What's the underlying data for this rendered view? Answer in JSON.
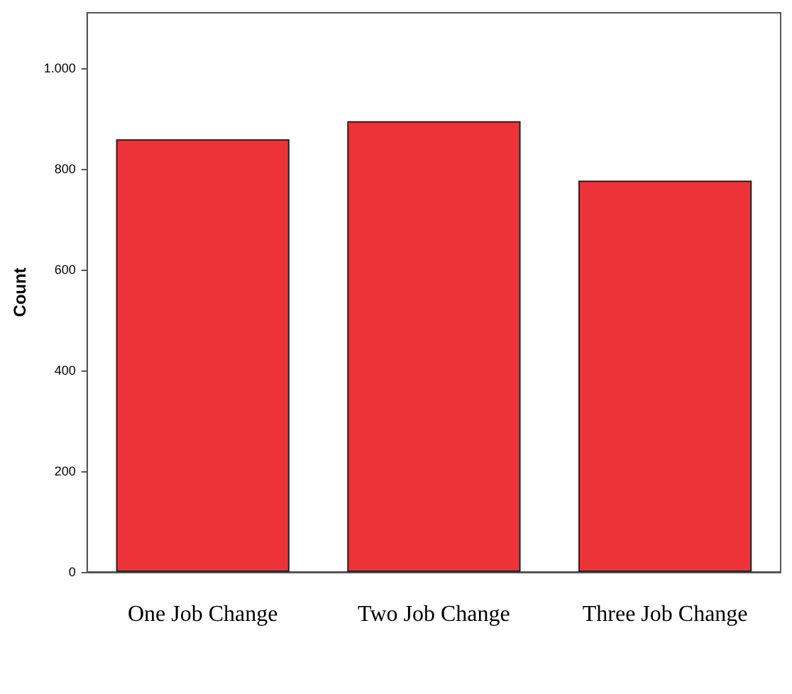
{
  "chart_data": {
    "type": "bar",
    "ylabel": "Count",
    "categories": [
      "One Job Change",
      "Two Job Change",
      "Three Job Change"
    ],
    "values": [
      859,
      895,
      777
    ],
    "color": "#ee3338",
    "ylim": [
      0,
      1110
    ],
    "yticks": [
      0,
      200,
      400,
      600,
      800,
      {
        "value": 1000,
        "label": "1.000"
      }
    ],
    "grid": false
  }
}
